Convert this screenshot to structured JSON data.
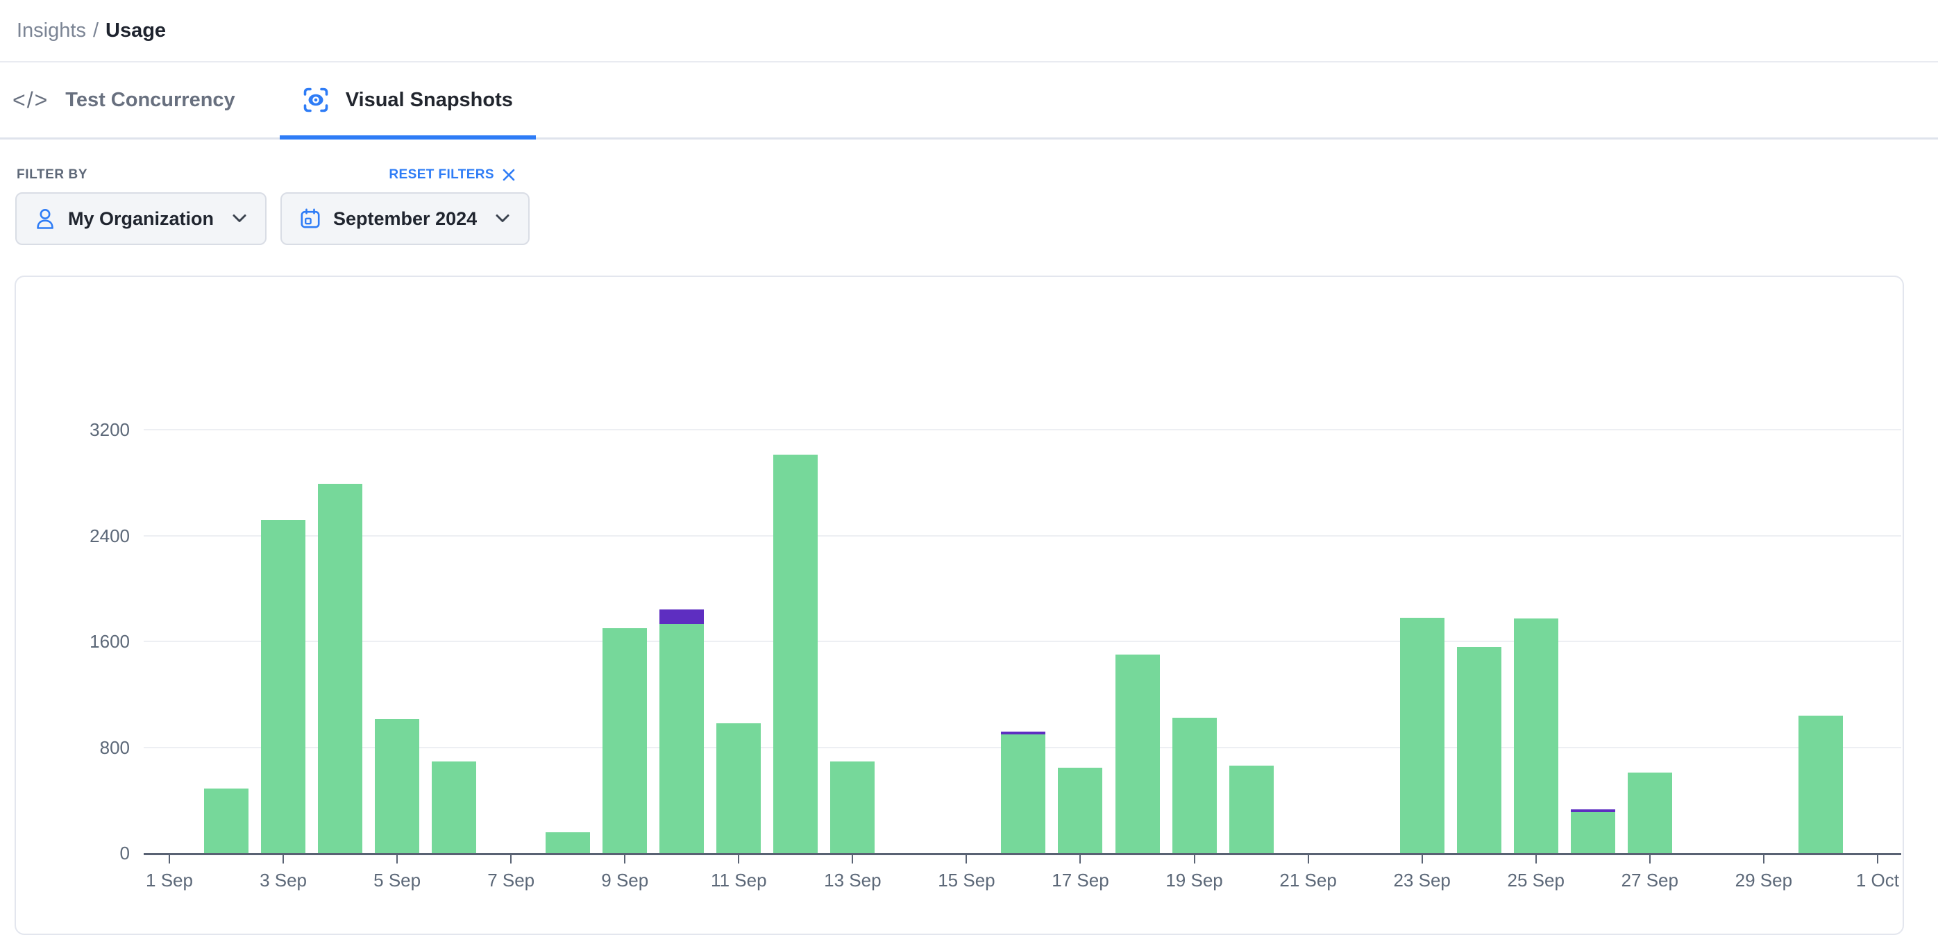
{
  "breadcrumb": {
    "section": "Insights",
    "separator": "/",
    "current": "Usage"
  },
  "tabs": [
    {
      "label": "Test Concurrency",
      "icon": "code-icon",
      "active": false
    },
    {
      "label": "Visual Snapshots",
      "icon": "eye-scan-icon",
      "active": true
    }
  ],
  "filters": {
    "heading": "FILTER BY",
    "reset_label": "RESET FILTERS",
    "dropdowns": [
      {
        "label": "My Organization",
        "icon": "person-icon"
      },
      {
        "label": "September 2024",
        "icon": "calendar-icon"
      }
    ]
  },
  "colors": {
    "accent_blue": "#2e7cf6",
    "bar_green": "#76d89a",
    "bar_purple": "#5e2ec1",
    "axis_gray": "#596273",
    "gridline_gray": "#edeff3"
  },
  "chart_data": {
    "type": "bar",
    "stacked": true,
    "title": "",
    "xlabel": "",
    "ylabel": "",
    "ylim": [
      0,
      3200
    ],
    "yticks": [
      0,
      800,
      1600,
      2400,
      3200
    ],
    "grid": true,
    "legend": "none",
    "categories": [
      "1 Sep",
      "2 Sep",
      "3 Sep",
      "4 Sep",
      "5 Sep",
      "6 Sep",
      "7 Sep",
      "8 Sep",
      "9 Sep",
      "10 Sep",
      "11 Sep",
      "12 Sep",
      "13 Sep",
      "14 Sep",
      "15 Sep",
      "16 Sep",
      "17 Sep",
      "18 Sep",
      "19 Sep",
      "20 Sep",
      "21 Sep",
      "22 Sep",
      "23 Sep",
      "24 Sep",
      "25 Sep",
      "26 Sep",
      "27 Sep",
      "28 Sep",
      "29 Sep",
      "30 Sep",
      "1 Oct"
    ],
    "xtick_labels": [
      "1 Sep",
      "3 Sep",
      "5 Sep",
      "7 Sep",
      "9 Sep",
      "11 Sep",
      "13 Sep",
      "15 Sep",
      "17 Sep",
      "19 Sep",
      "21 Sep",
      "23 Sep",
      "25 Sep",
      "27 Sep",
      "29 Sep",
      "1 Oct"
    ],
    "series": [
      {
        "name": "snapshots",
        "color": "#76d89a",
        "values": [
          0,
          490,
          2520,
          2790,
          1010,
          690,
          0,
          160,
          1700,
          1730,
          980,
          3010,
          690,
          0,
          0,
          895,
          645,
          1500,
          1025,
          660,
          0,
          0,
          1780,
          1560,
          1775,
          310,
          610,
          0,
          0,
          1040,
          0
        ]
      },
      {
        "name": "snapshots-secondary",
        "color": "#5e2ec1",
        "values": [
          0,
          0,
          0,
          0,
          0,
          0,
          0,
          0,
          0,
          110,
          0,
          0,
          0,
          0,
          0,
          25,
          0,
          0,
          0,
          0,
          0,
          0,
          0,
          0,
          0,
          20,
          0,
          0,
          0,
          0,
          0
        ]
      }
    ]
  }
}
